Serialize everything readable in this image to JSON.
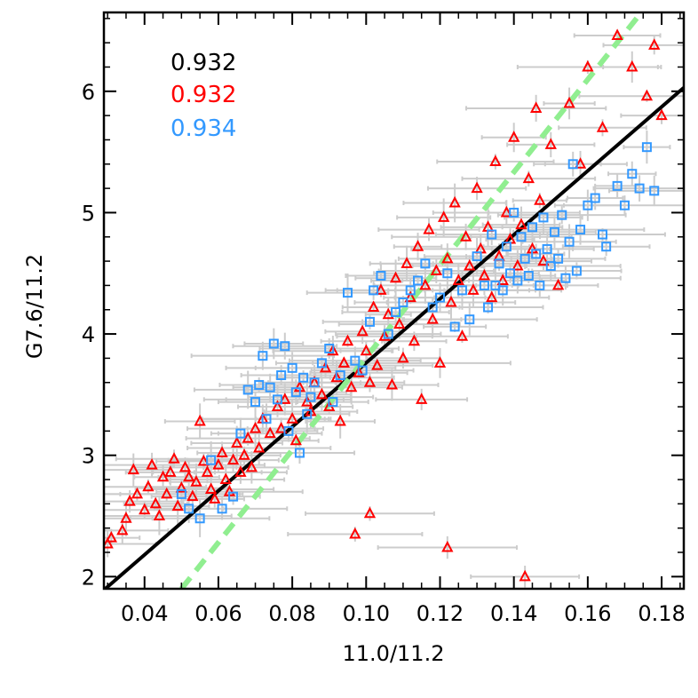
{
  "chart_data": {
    "type": "scatter",
    "xlabel": "11.0/11.2",
    "ylabel": "G7.6/11.2",
    "xlim": [
      0.029,
      0.186
    ],
    "ylim": [
      1.9,
      6.65
    ],
    "x_ticks": [
      "0.04",
      "0.06",
      "0.08",
      "0.10",
      "0.12",
      "0.14",
      "0.16",
      "0.18"
    ],
    "y_ticks": [
      "2",
      "3",
      "4",
      "5",
      "6"
    ],
    "grid": false,
    "legend": "none",
    "correlations": [
      {
        "label": "0.932",
        "color": "#000000"
      },
      {
        "label": "0.932",
        "color": "#ff0000"
      },
      {
        "label": "0.934",
        "color": "#3399ff"
      }
    ],
    "errorbar_color": "#cccccc",
    "series": [
      {
        "marker": "triangle",
        "color": "#ff0000",
        "points": [
          [
            0.03,
            2.27
          ],
          [
            0.031,
            2.32
          ],
          [
            0.034,
            2.38
          ],
          [
            0.035,
            2.48
          ],
          [
            0.036,
            2.62
          ],
          [
            0.037,
            2.88
          ],
          [
            0.038,
            2.68
          ],
          [
            0.04,
            2.55
          ],
          [
            0.041,
            2.74
          ],
          [
            0.042,
            2.92
          ],
          [
            0.043,
            2.6
          ],
          [
            0.044,
            2.5
          ],
          [
            0.045,
            2.82
          ],
          [
            0.046,
            2.68
          ],
          [
            0.047,
            2.86
          ],
          [
            0.048,
            2.97
          ],
          [
            0.049,
            2.58
          ],
          [
            0.05,
            2.73
          ],
          [
            0.051,
            2.9
          ],
          [
            0.052,
            2.82
          ],
          [
            0.053,
            2.66
          ],
          [
            0.054,
            2.78
          ],
          [
            0.055,
            3.28
          ],
          [
            0.056,
            2.95
          ],
          [
            0.057,
            2.86
          ],
          [
            0.058,
            2.72
          ],
          [
            0.059,
            2.64
          ],
          [
            0.06,
            2.92
          ],
          [
            0.061,
            3.02
          ],
          [
            0.062,
            2.8
          ],
          [
            0.063,
            2.7
          ],
          [
            0.064,
            2.96
          ],
          [
            0.065,
            3.1
          ],
          [
            0.066,
            2.86
          ],
          [
            0.067,
            3.0
          ],
          [
            0.068,
            3.14
          ],
          [
            0.069,
            2.9
          ],
          [
            0.07,
            3.22
          ],
          [
            0.071,
            3.06
          ],
          [
            0.072,
            3.3
          ],
          [
            0.074,
            3.18
          ],
          [
            0.076,
            3.4
          ],
          [
            0.077,
            3.22
          ],
          [
            0.078,
            3.46
          ],
          [
            0.08,
            3.3
          ],
          [
            0.081,
            3.12
          ],
          [
            0.082,
            3.56
          ],
          [
            0.084,
            3.44
          ],
          [
            0.085,
            3.36
          ],
          [
            0.086,
            3.6
          ],
          [
            0.088,
            3.5
          ],
          [
            0.089,
            3.72
          ],
          [
            0.09,
            3.4
          ],
          [
            0.091,
            3.86
          ],
          [
            0.092,
            3.64
          ],
          [
            0.093,
            3.28
          ],
          [
            0.094,
            3.76
          ],
          [
            0.095,
            3.94
          ],
          [
            0.096,
            3.56
          ],
          [
            0.097,
            2.35
          ],
          [
            0.098,
            3.68
          ],
          [
            0.099,
            4.02
          ],
          [
            0.1,
            3.86
          ],
          [
            0.101,
            3.6
          ],
          [
            0.101,
            2.52
          ],
          [
            0.102,
            4.22
          ],
          [
            0.103,
            3.74
          ],
          [
            0.104,
            4.36
          ],
          [
            0.105,
            3.98
          ],
          [
            0.106,
            4.16
          ],
          [
            0.107,
            3.58
          ],
          [
            0.108,
            4.46
          ],
          [
            0.109,
            4.08
          ],
          [
            0.11,
            3.8
          ],
          [
            0.111,
            4.58
          ],
          [
            0.112,
            4.3
          ],
          [
            0.113,
            3.94
          ],
          [
            0.114,
            4.72
          ],
          [
            0.115,
            3.46
          ],
          [
            0.116,
            4.4
          ],
          [
            0.117,
            4.86
          ],
          [
            0.118,
            4.12
          ],
          [
            0.119,
            4.52
          ],
          [
            0.12,
            3.76
          ],
          [
            0.121,
            4.96
          ],
          [
            0.122,
            2.24
          ],
          [
            0.122,
            4.62
          ],
          [
            0.123,
            4.26
          ],
          [
            0.124,
            5.08
          ],
          [
            0.125,
            4.44
          ],
          [
            0.126,
            3.98
          ],
          [
            0.127,
            4.8
          ],
          [
            0.128,
            4.56
          ],
          [
            0.129,
            4.36
          ],
          [
            0.13,
            5.2
          ],
          [
            0.131,
            4.7
          ],
          [
            0.132,
            4.48
          ],
          [
            0.133,
            4.88
          ],
          [
            0.134,
            4.3
          ],
          [
            0.135,
            5.42
          ],
          [
            0.136,
            4.64
          ],
          [
            0.137,
            4.44
          ],
          [
            0.138,
            5.0
          ],
          [
            0.139,
            4.78
          ],
          [
            0.14,
            5.62
          ],
          [
            0.141,
            4.56
          ],
          [
            0.142,
            4.9
          ],
          [
            0.143,
            2.0
          ],
          [
            0.144,
            5.28
          ],
          [
            0.145,
            4.7
          ],
          [
            0.146,
            5.86
          ],
          [
            0.147,
            5.1
          ],
          [
            0.148,
            4.6
          ],
          [
            0.15,
            5.56
          ],
          [
            0.152,
            4.4
          ],
          [
            0.155,
            5.9
          ],
          [
            0.158,
            5.4
          ],
          [
            0.16,
            6.2
          ],
          [
            0.164,
            5.7
          ],
          [
            0.168,
            6.46
          ],
          [
            0.172,
            6.2
          ],
          [
            0.176,
            5.96
          ],
          [
            0.178,
            6.38
          ],
          [
            0.18,
            5.8
          ]
        ]
      },
      {
        "marker": "square",
        "color": "#3399ff",
        "points": [
          [
            0.05,
            2.68
          ],
          [
            0.052,
            2.56
          ],
          [
            0.055,
            2.48
          ],
          [
            0.058,
            2.96
          ],
          [
            0.061,
            2.56
          ],
          [
            0.064,
            2.66
          ],
          [
            0.066,
            3.18
          ],
          [
            0.068,
            3.54
          ],
          [
            0.07,
            3.44
          ],
          [
            0.071,
            3.58
          ],
          [
            0.072,
            3.82
          ],
          [
            0.073,
            3.3
          ],
          [
            0.074,
            3.56
          ],
          [
            0.075,
            3.92
          ],
          [
            0.076,
            3.46
          ],
          [
            0.077,
            3.66
          ],
          [
            0.078,
            3.9
          ],
          [
            0.079,
            3.2
          ],
          [
            0.08,
            3.72
          ],
          [
            0.081,
            3.52
          ],
          [
            0.082,
            3.02
          ],
          [
            0.083,
            3.64
          ],
          [
            0.084,
            3.34
          ],
          [
            0.085,
            3.48
          ],
          [
            0.086,
            3.6
          ],
          [
            0.088,
            3.76
          ],
          [
            0.09,
            3.88
          ],
          [
            0.091,
            3.44
          ],
          [
            0.093,
            3.66
          ],
          [
            0.095,
            4.34
          ],
          [
            0.097,
            3.78
          ],
          [
            0.099,
            3.7
          ],
          [
            0.101,
            4.1
          ],
          [
            0.102,
            4.36
          ],
          [
            0.104,
            4.48
          ],
          [
            0.106,
            4.0
          ],
          [
            0.108,
            4.18
          ],
          [
            0.11,
            4.26
          ],
          [
            0.112,
            4.36
          ],
          [
            0.114,
            4.44
          ],
          [
            0.116,
            4.58
          ],
          [
            0.118,
            4.22
          ],
          [
            0.12,
            4.3
          ],
          [
            0.122,
            4.5
          ],
          [
            0.124,
            4.06
          ],
          [
            0.126,
            4.36
          ],
          [
            0.128,
            4.12
          ],
          [
            0.13,
            4.64
          ],
          [
            0.132,
            4.4
          ],
          [
            0.133,
            4.22
          ],
          [
            0.134,
            4.82
          ],
          [
            0.135,
            4.4
          ],
          [
            0.136,
            4.58
          ],
          [
            0.137,
            4.36
          ],
          [
            0.138,
            4.72
          ],
          [
            0.139,
            4.5
          ],
          [
            0.14,
            5.0
          ],
          [
            0.141,
            4.44
          ],
          [
            0.142,
            4.8
          ],
          [
            0.143,
            4.62
          ],
          [
            0.144,
            4.48
          ],
          [
            0.145,
            4.88
          ],
          [
            0.146,
            4.66
          ],
          [
            0.147,
            4.4
          ],
          [
            0.148,
            4.96
          ],
          [
            0.149,
            4.7
          ],
          [
            0.15,
            4.56
          ],
          [
            0.151,
            4.84
          ],
          [
            0.152,
            4.62
          ],
          [
            0.153,
            4.98
          ],
          [
            0.154,
            4.46
          ],
          [
            0.155,
            4.76
          ],
          [
            0.156,
            5.4
          ],
          [
            0.157,
            4.52
          ],
          [
            0.158,
            4.86
          ],
          [
            0.16,
            5.06
          ],
          [
            0.162,
            5.12
          ],
          [
            0.164,
            4.82
          ],
          [
            0.165,
            4.72
          ],
          [
            0.168,
            5.22
          ],
          [
            0.17,
            5.06
          ],
          [
            0.172,
            5.32
          ],
          [
            0.174,
            5.2
          ],
          [
            0.176,
            5.54
          ],
          [
            0.178,
            5.18
          ]
        ]
      }
    ],
    "lines": [
      {
        "style": "solid",
        "color": "#000000",
        "x": [
          0.029,
          0.186
        ],
        "y": [
          1.89,
          6.03
        ]
      },
      {
        "style": "dashed",
        "color": "#90ee90",
        "x": [
          0.05,
          0.1745
        ],
        "y": [
          1.9,
          6.65
        ]
      }
    ]
  }
}
